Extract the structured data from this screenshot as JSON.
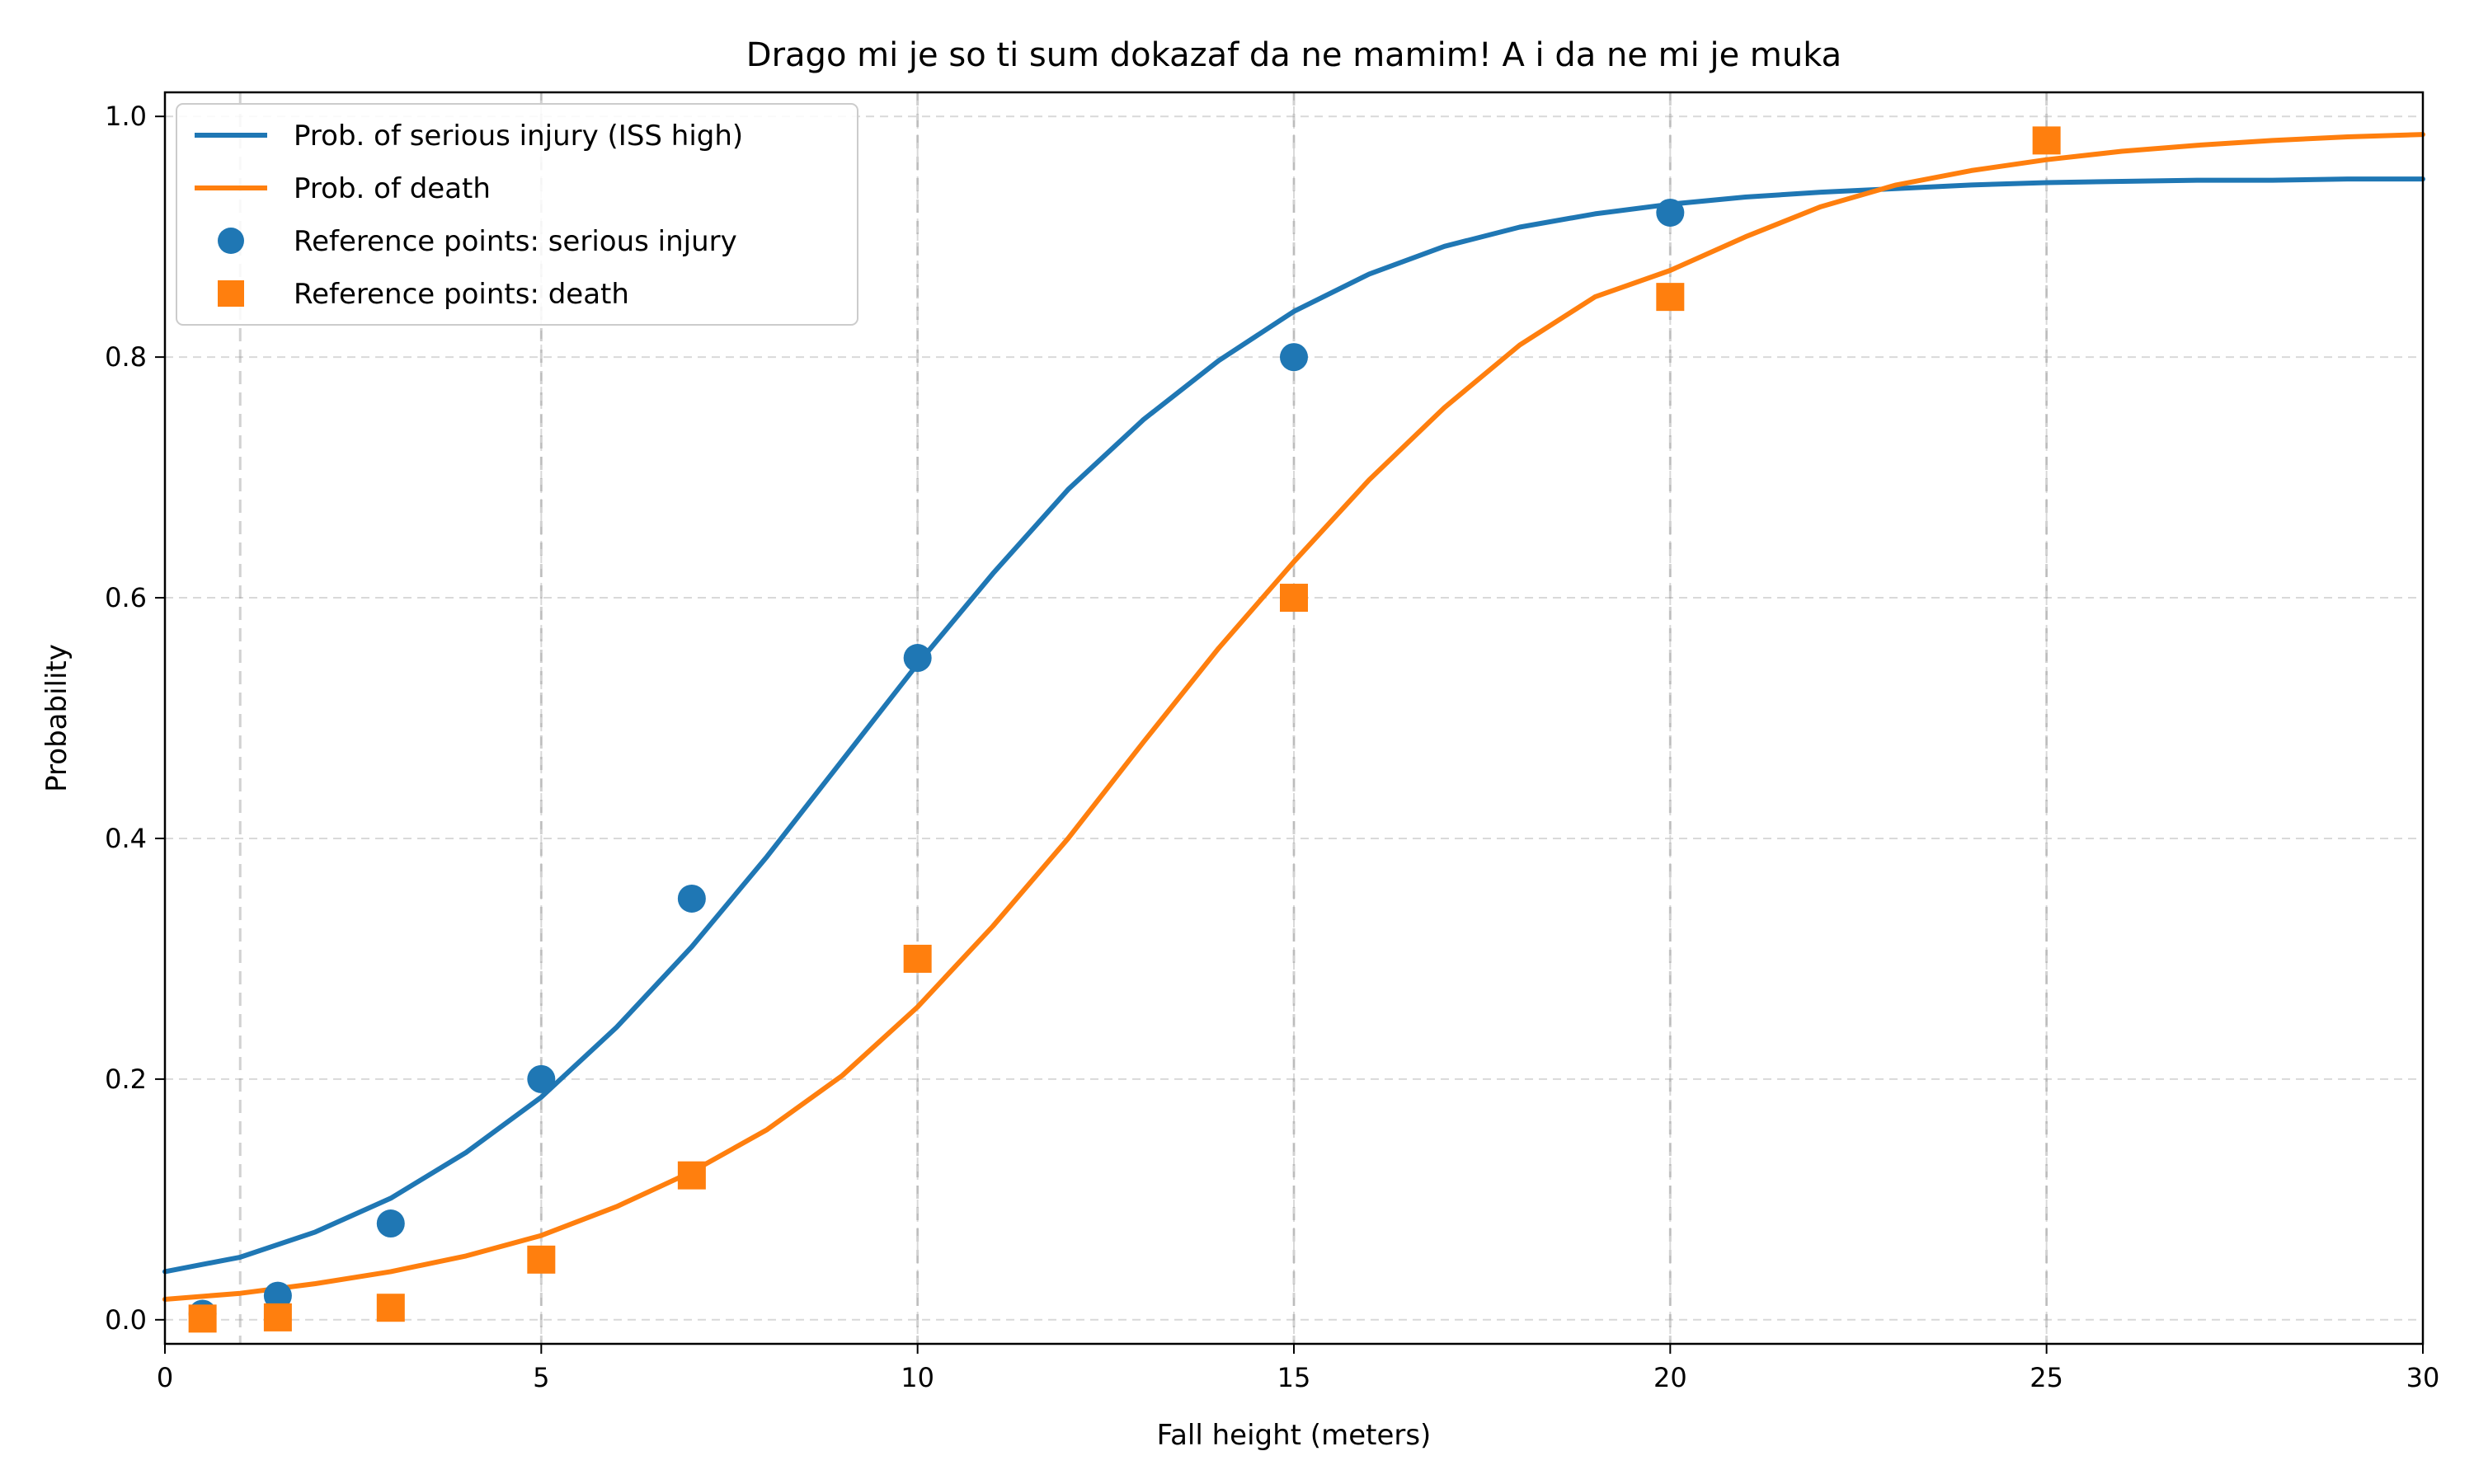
{
  "chart_data": {
    "type": "line",
    "title": "Drago mi je so ti sum dokazaf da ne mamim! A i da ne mi je muka",
    "xlabel": "Fall height (meters)",
    "ylabel": "Probability",
    "xlim": [
      0,
      30
    ],
    "ylim": [
      -0.02,
      1.02
    ],
    "xticks": [
      0,
      5,
      10,
      15,
      20,
      25,
      30
    ],
    "xtick_labels": [
      "0",
      "5",
      "10",
      "15",
      "20",
      "25",
      "30"
    ],
    "yticks": [
      0.0,
      0.2,
      0.4,
      0.6,
      0.8,
      1.0
    ],
    "ytick_labels": [
      "0.0",
      "0.2",
      "0.4",
      "0.6",
      "0.8",
      "1.0"
    ],
    "grid": true,
    "reference_vlines": [
      1,
      5,
      10,
      15,
      20,
      25
    ],
    "legend_position": "top-left",
    "series": [
      {
        "name": "Prob. of serious injury (ISS high)",
        "kind": "line",
        "color": "#1f77b4",
        "x": [
          0,
          1,
          2,
          3,
          4,
          5,
          6,
          7,
          8,
          9,
          10,
          11,
          12,
          13,
          14,
          15,
          16,
          17,
          18,
          19,
          20,
          21,
          22,
          23,
          24,
          25,
          26,
          27,
          28,
          29,
          30
        ],
        "y": [
          0.04,
          0.052,
          0.073,
          0.101,
          0.139,
          0.185,
          0.243,
          0.31,
          0.385,
          0.465,
          0.545,
          0.62,
          0.69,
          0.748,
          0.797,
          0.838,
          0.869,
          0.892,
          0.908,
          0.919,
          0.927,
          0.933,
          0.937,
          0.94,
          0.943,
          0.945,
          0.946,
          0.947,
          0.947,
          0.948,
          0.948
        ]
      },
      {
        "name": "Prob. of death",
        "kind": "line",
        "color": "#ff7f0e",
        "x": [
          0,
          1,
          2,
          3,
          4,
          5,
          6,
          7,
          8,
          9,
          10,
          11,
          12,
          13,
          14,
          15,
          16,
          17,
          18,
          19,
          20,
          21,
          22,
          23,
          24,
          25,
          26,
          27,
          28,
          29,
          30
        ],
        "y": [
          0.017,
          0.022,
          0.03,
          0.04,
          0.053,
          0.07,
          0.094,
          0.123,
          0.158,
          0.203,
          0.26,
          0.327,
          0.4,
          0.48,
          0.558,
          0.63,
          0.698,
          0.758,
          0.81,
          0.85,
          0.872,
          0.9,
          0.925,
          0.943,
          0.955,
          0.964,
          0.971,
          0.976,
          0.98,
          0.983,
          0.985
        ]
      },
      {
        "name": "Reference points: serious injury",
        "kind": "scatter",
        "marker": "circle",
        "color": "#1f77b4",
        "x": [
          0.5,
          1.5,
          3,
          5,
          7,
          10,
          15,
          20
        ],
        "y": [
          0.005,
          0.02,
          0.08,
          0.2,
          0.35,
          0.55,
          0.8,
          0.92
        ]
      },
      {
        "name": "Reference points: death",
        "kind": "scatter",
        "marker": "square",
        "color": "#ff7f0e",
        "x": [
          0.5,
          1.5,
          3,
          5,
          7,
          10,
          15,
          20,
          25
        ],
        "y": [
          0.001,
          0.002,
          0.01,
          0.05,
          0.12,
          0.3,
          0.6,
          0.85,
          0.98
        ]
      }
    ]
  }
}
